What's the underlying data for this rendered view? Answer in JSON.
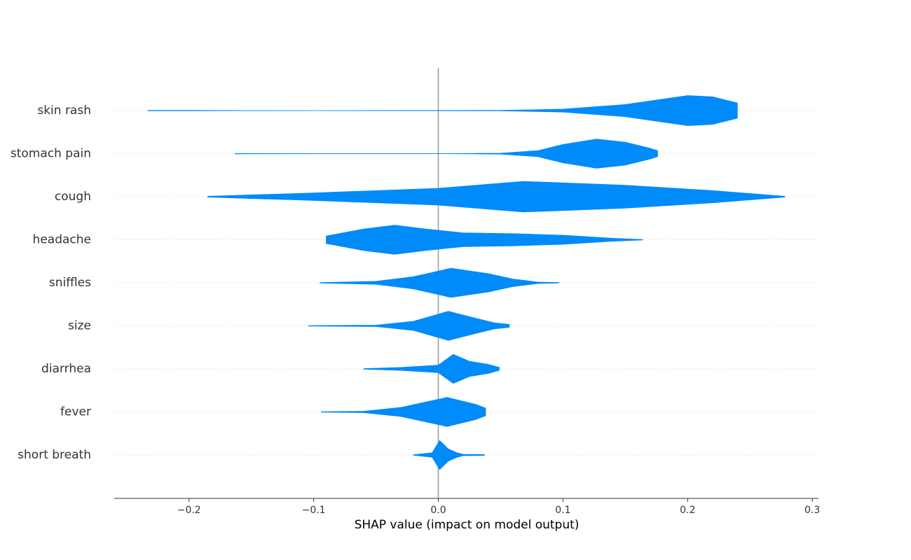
{
  "chart_data": {
    "type": "violin",
    "xlabel": "SHAP value (impact on model output)",
    "categories": [
      "skin rash",
      "stomach pain",
      "cough",
      "headache",
      "sniffles",
      "size",
      "diarrhea",
      "fever",
      "short breath"
    ],
    "color": "#008bfb",
    "grid": true,
    "xlim": [
      -0.26,
      0.305
    ],
    "xticks": [
      {
        "value": -0.2,
        "label": "−0.2"
      },
      {
        "value": -0.1,
        "label": "−0.1"
      },
      {
        "value": 0,
        "label": "0.0"
      },
      {
        "value": 0.1,
        "label": "0.1"
      },
      {
        "value": 0.2,
        "label": "0.2"
      },
      {
        "value": 0.3,
        "label": "0.3"
      }
    ],
    "violins": [
      {
        "x": [
          -0.233,
          -0.2,
          -0.16,
          -0.1,
          0.05,
          0.1,
          0.15,
          0.18,
          0.2,
          0.22,
          0.24
        ],
        "density": [
          0.02,
          0.02,
          0.01,
          0.005,
          0.02,
          0.1,
          0.4,
          0.75,
          0.98,
          0.9,
          0.5
        ]
      },
      {
        "x": [
          -0.163,
          -0.1,
          0,
          0.05,
          0.08,
          0.1,
          0.127,
          0.15,
          0.17,
          0.176
        ],
        "density": [
          0.02,
          0.01,
          0.01,
          0.03,
          0.2,
          0.6,
          0.95,
          0.75,
          0.35,
          0.2
        ]
      },
      {
        "x": [
          -0.185,
          -0.1,
          0,
          0.068,
          0.15,
          0.22,
          0.278
        ],
        "density": [
          0.03,
          0.25,
          0.55,
          1.0,
          0.75,
          0.4,
          0.03
        ]
      },
      {
        "x": [
          -0.09,
          -0.06,
          -0.035,
          -0.01,
          0.02,
          0.06,
          0.1,
          0.14,
          0.164
        ],
        "density": [
          0.25,
          0.7,
          0.95,
          0.7,
          0.45,
          0.4,
          0.3,
          0.1,
          0.02
        ]
      },
      {
        "x": [
          -0.095,
          -0.05,
          -0.02,
          0.01,
          0.04,
          0.06,
          0.08,
          0.097
        ],
        "density": [
          0.02,
          0.1,
          0.4,
          0.95,
          0.6,
          0.25,
          0.05,
          0.02
        ]
      },
      {
        "x": [
          -0.104,
          -0.05,
          -0.02,
          0.008,
          0.03,
          0.045,
          0.057
        ],
        "density": [
          0.02,
          0.05,
          0.3,
          0.95,
          0.5,
          0.2,
          0.1
        ]
      },
      {
        "x": [
          -0.06,
          -0.03,
          0,
          0.012,
          0.025,
          0.04,
          0.049
        ],
        "density": [
          0.02,
          0.1,
          0.25,
          0.95,
          0.5,
          0.3,
          0.1
        ]
      },
      {
        "x": [
          -0.094,
          -0.06,
          -0.03,
          0.007,
          0.03,
          0.038
        ],
        "density": [
          0.02,
          0.05,
          0.3,
          0.95,
          0.5,
          0.25
        ]
      },
      {
        "x": [
          -0.02,
          -0.005,
          0.001,
          0.008,
          0.015,
          0.02,
          0.037
        ],
        "density": [
          0.02,
          0.15,
          0.95,
          0.4,
          0.15,
          0.05,
          0.03
        ]
      }
    ]
  }
}
